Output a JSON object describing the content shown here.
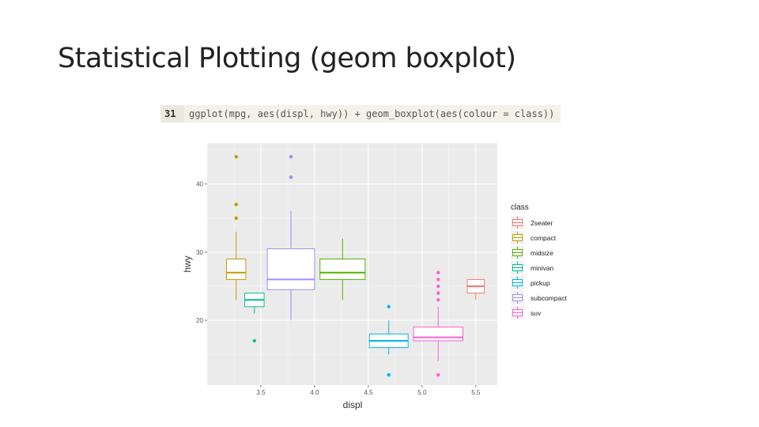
{
  "slide": {
    "title": "Statistical Plotting (geom boxplot)"
  },
  "code": {
    "line_number": "31",
    "text": "ggplot(mpg, aes(displ, hwy)) + geom_boxplot(aes(colour = class))"
  },
  "chart_data": {
    "type": "box",
    "xlabel": "displ",
    "ylabel": "hwy",
    "xlim": [
      3.0,
      5.7
    ],
    "ylim": [
      10.5,
      46
    ],
    "x_ticks": [
      3.5,
      4.0,
      4.5,
      5.0,
      5.5
    ],
    "x_tick_labels": [
      "3.5",
      "4.0",
      "4.5",
      "5.0",
      "5.5"
    ],
    "y_ticks": [
      20,
      30,
      40
    ],
    "y_tick_labels": [
      "20",
      "30",
      "40"
    ],
    "grid": true,
    "legend": {
      "title": "class",
      "placement": "right",
      "entries": [
        "2seater",
        "compact",
        "midsize",
        "minivan",
        "pickup",
        "subcompact",
        "suv"
      ]
    },
    "colors": {
      "2seater": "#F8766D",
      "compact": "#C49A00",
      "midsize": "#53B400",
      "minivan": "#00C094",
      "pickup": "#00B6EB",
      "subcompact": "#A58AFF",
      "suv": "#FB61D7"
    },
    "series": [
      {
        "name": "2seater",
        "center": 5.5,
        "half_width": 0.08,
        "whisker_low": 23,
        "q1": 24,
        "median": 25,
        "q3": 26,
        "whisker_high": 26,
        "outliers": []
      },
      {
        "name": "compact",
        "center": 3.27,
        "half_width": 0.09,
        "whisker_low": 23,
        "q1": 26,
        "median": 27,
        "q3": 29,
        "whisker_high": 33,
        "outliers": [
          35,
          37,
          44
        ]
      },
      {
        "name": "midsize",
        "center": 4.26,
        "half_width": 0.21,
        "whisker_low": 23,
        "q1": 26,
        "median": 27,
        "q3": 29,
        "whisker_high": 32,
        "outliers": []
      },
      {
        "name": "minivan",
        "center": 3.44,
        "half_width": 0.09,
        "whisker_low": 21,
        "q1": 22,
        "median": 23,
        "q3": 24,
        "whisker_high": 24,
        "outliers": [
          17
        ]
      },
      {
        "name": "pickup",
        "center": 4.69,
        "half_width": 0.18,
        "whisker_low": 15,
        "q1": 16,
        "median": 17,
        "q3": 18,
        "whisker_high": 20,
        "outliers": [
          12,
          22
        ]
      },
      {
        "name": "subcompact",
        "center": 3.78,
        "half_width": 0.22,
        "whisker_low": 20,
        "q1": 24.5,
        "median": 26,
        "q3": 30.5,
        "whisker_high": 36,
        "outliers": [
          41,
          44
        ]
      },
      {
        "name": "suv",
        "center": 5.15,
        "half_width": 0.23,
        "whisker_low": 14,
        "q1": 17,
        "median": 17.5,
        "q3": 19,
        "whisker_high": 22,
        "outliers": [
          12,
          23,
          24,
          25,
          26,
          27
        ]
      }
    ]
  }
}
